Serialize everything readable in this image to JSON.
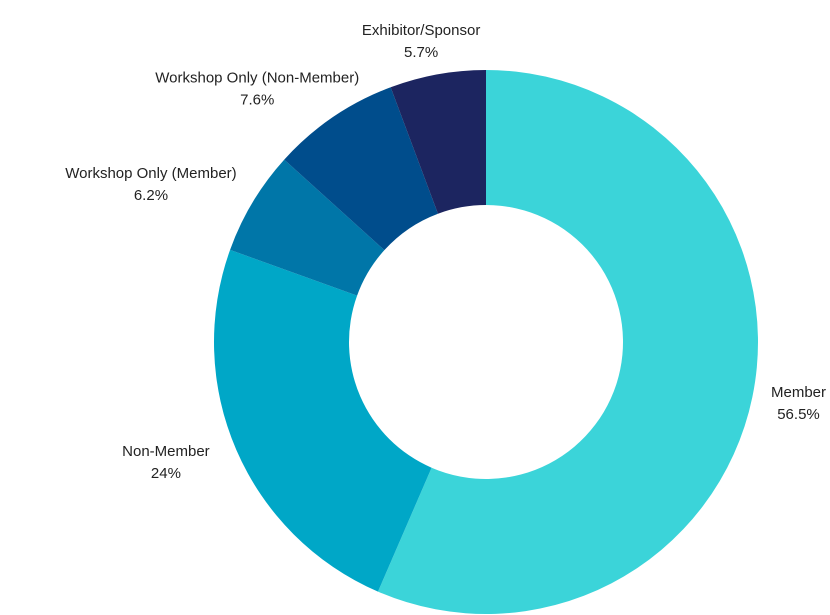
{
  "chart_data": {
    "type": "donut",
    "categories": [
      "Member",
      "Non-Member",
      "Workshop Only (Member)",
      "Workshop Only (Non-Member)",
      "Exhibitor/Sponsor"
    ],
    "values": [
      56.5,
      24,
      6.2,
      7.6,
      5.7
    ],
    "value_labels": [
      "56.5%",
      "24%",
      "6.2%",
      "7.6%",
      "5.7%"
    ],
    "colors": [
      "#3bd4d9",
      "#00a7c7",
      "#0076a8",
      "#004d8c",
      "#1c2560"
    ]
  }
}
